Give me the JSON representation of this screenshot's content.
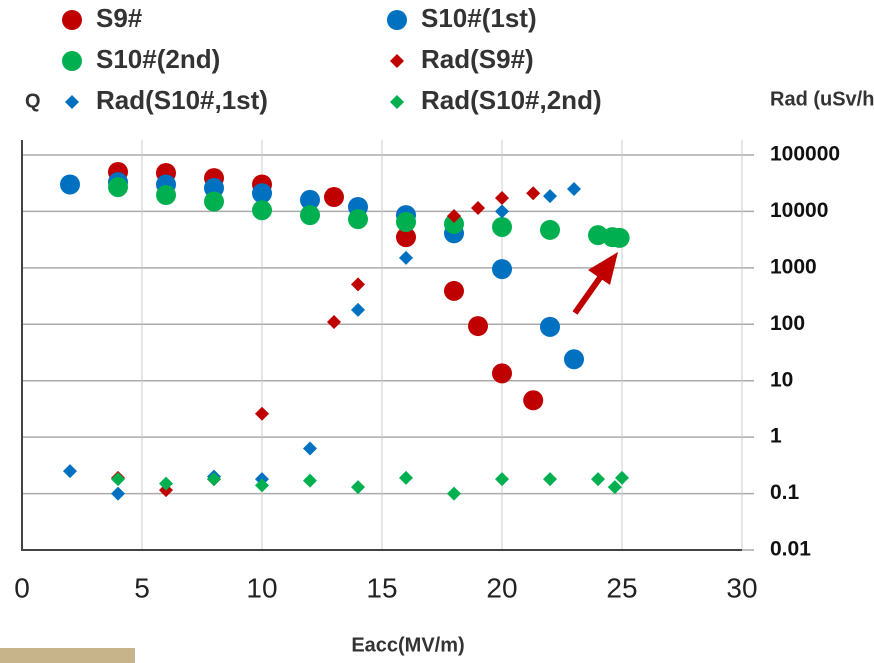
{
  "chart_data": {
    "type": "scatter",
    "y_label_left": "Q",
    "y_label_right": "Rad (uSv/h)",
    "x_label": "Eacc(MV/m)",
    "xlim": [
      0,
      30
    ],
    "xticks": [
      0,
      5,
      10,
      15,
      20,
      25,
      30
    ],
    "ylim": [
      0.01,
      100000
    ],
    "yticks": [
      0.01,
      0.1,
      1,
      10,
      100,
      1000,
      10000,
      100000
    ],
    "log_y": true,
    "grid": true,
    "series": [
      {
        "name": "S9#",
        "color": "#c00000",
        "marker": "circle",
        "x": [
          4,
          6,
          8,
          10,
          13,
          16,
          18,
          19,
          20,
          21.3
        ],
        "values": [
          50000,
          48000,
          39000,
          30000,
          18000,
          3500,
          390,
          93,
          13.5,
          4.5
        ]
      },
      {
        "name": "S10#(1st)",
        "color": "#0070c0",
        "marker": "circle",
        "x": [
          2,
          4,
          6,
          8,
          10,
          12,
          14,
          16,
          18,
          20,
          22,
          23
        ],
        "values": [
          30000,
          33000,
          30000,
          26000,
          21000,
          16000,
          12000,
          8600,
          4100,
          950,
          90,
          24
        ]
      },
      {
        "name": "S10#(2nd)",
        "color": "#00b050",
        "marker": "circle",
        "x": [
          4,
          6,
          8,
          10,
          12,
          14,
          16,
          18,
          20,
          22,
          24,
          24.6,
          24.9
        ],
        "values": [
          27000,
          19500,
          15000,
          10500,
          8600,
          7300,
          6500,
          6000,
          5300,
          4700,
          3800,
          3500,
          3400
        ]
      },
      {
        "name": "Rad(S9#)",
        "color": "#c00000",
        "marker": "diamond",
        "x": [
          4,
          6,
          8,
          10,
          13,
          14,
          18,
          19,
          20,
          21.3
        ],
        "values": [
          0.19,
          0.115,
          0.18,
          2.6,
          110,
          510,
          8300,
          11500,
          17300,
          21000
        ]
      },
      {
        "name": "Rad(S10#,1st)",
        "color": "#0070c0",
        "marker": "diamond",
        "x": [
          2,
          4,
          8,
          10,
          12,
          14,
          16,
          20,
          22,
          23
        ],
        "values": [
          0.25,
          0.1,
          0.2,
          0.18,
          0.63,
          180,
          1500,
          10000,
          18700,
          25000
        ]
      },
      {
        "name": "Rad(S10#,2nd)",
        "color": "#00b050",
        "marker": "diamond",
        "x": [
          4,
          6,
          8,
          10,
          12,
          14,
          16,
          18,
          20,
          22,
          24,
          24.7,
          25
        ],
        "values": [
          0.18,
          0.15,
          0.18,
          0.14,
          0.17,
          0.13,
          0.19,
          0.1,
          0.18,
          0.18,
          0.18,
          0.13,
          0.19
        ]
      }
    ]
  }
}
